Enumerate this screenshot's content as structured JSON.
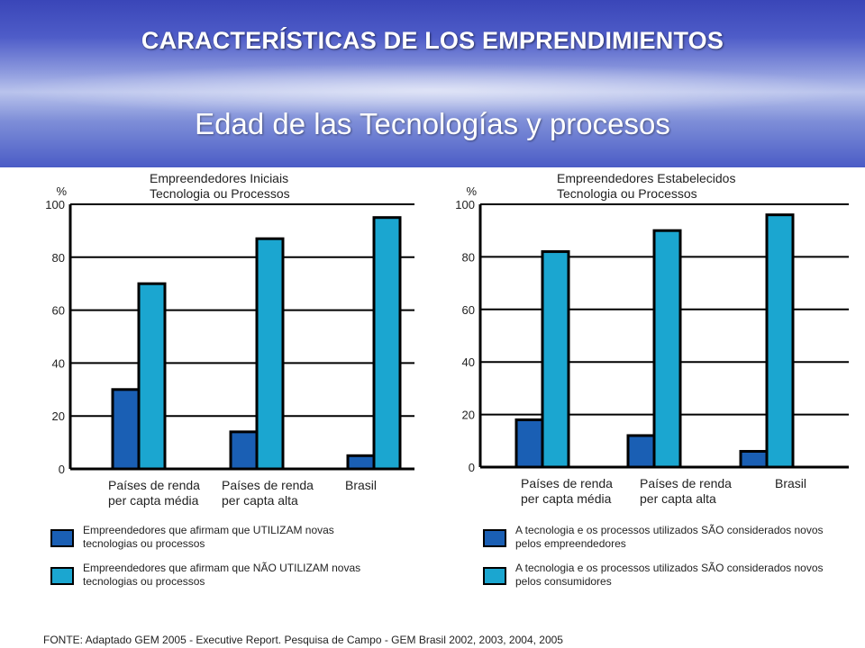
{
  "header": {
    "title": "CARACTERÍSTICAS DE LOS EMPRENDIMIENTOS",
    "subtitle": "Edad de las Tecnologías y procesos"
  },
  "colors": {
    "series_dark": "#1a5fb4",
    "series_light": "#1ba6d0"
  },
  "chart_data": [
    {
      "type": "bar",
      "title": "Empreendedores Iniciais\nTecnologia ou Processos",
      "ylabel": "%",
      "ylim": [
        0,
        100
      ],
      "yticks": [
        "0",
        "20",
        "40",
        "60",
        "80",
        "100"
      ],
      "grid": true,
      "categories": [
        "Países de renda\nper capta média",
        "Países de renda\nper capta alta",
        "Brasil"
      ],
      "series": [
        {
          "name": "Empreendedores que afirmam que  UTILIZAM novas\ntecnologias ou processos",
          "values": [
            30,
            14,
            5
          ]
        },
        {
          "name": "Empreendedores que afirmam que  NÃO UTILIZAM novas\ntecnologias ou processos",
          "values": [
            70,
            87,
            95
          ]
        }
      ],
      "legend_position": "bottom"
    },
    {
      "type": "bar",
      "title": "Empreendedores Estabelecidos\nTecnologia ou Processos",
      "ylabel": "%",
      "ylim": [
        0,
        100
      ],
      "yticks": [
        "0",
        "20",
        "40",
        "60",
        "80",
        "100"
      ],
      "grid": true,
      "categories": [
        "Países de renda\nper capta média",
        "Países de renda\nper capta alta",
        "Brasil"
      ],
      "series": [
        {
          "name": "A tecnologia e os processos utilizados SÃO considerados novos\npelos empreendedores",
          "values": [
            18,
            12,
            6
          ]
        },
        {
          "name": "A tecnologia e os processos utilizados SÃO considerados novos\npelos consumidores",
          "values": [
            82,
            90,
            96
          ]
        }
      ],
      "legend_position": "bottom"
    }
  ],
  "footer": {
    "source": "FONTE: Adaptado GEM 2005 - Executive Report. Pesquisa de Campo - GEM Brasil 2002, 2003, 2004, 2005"
  }
}
